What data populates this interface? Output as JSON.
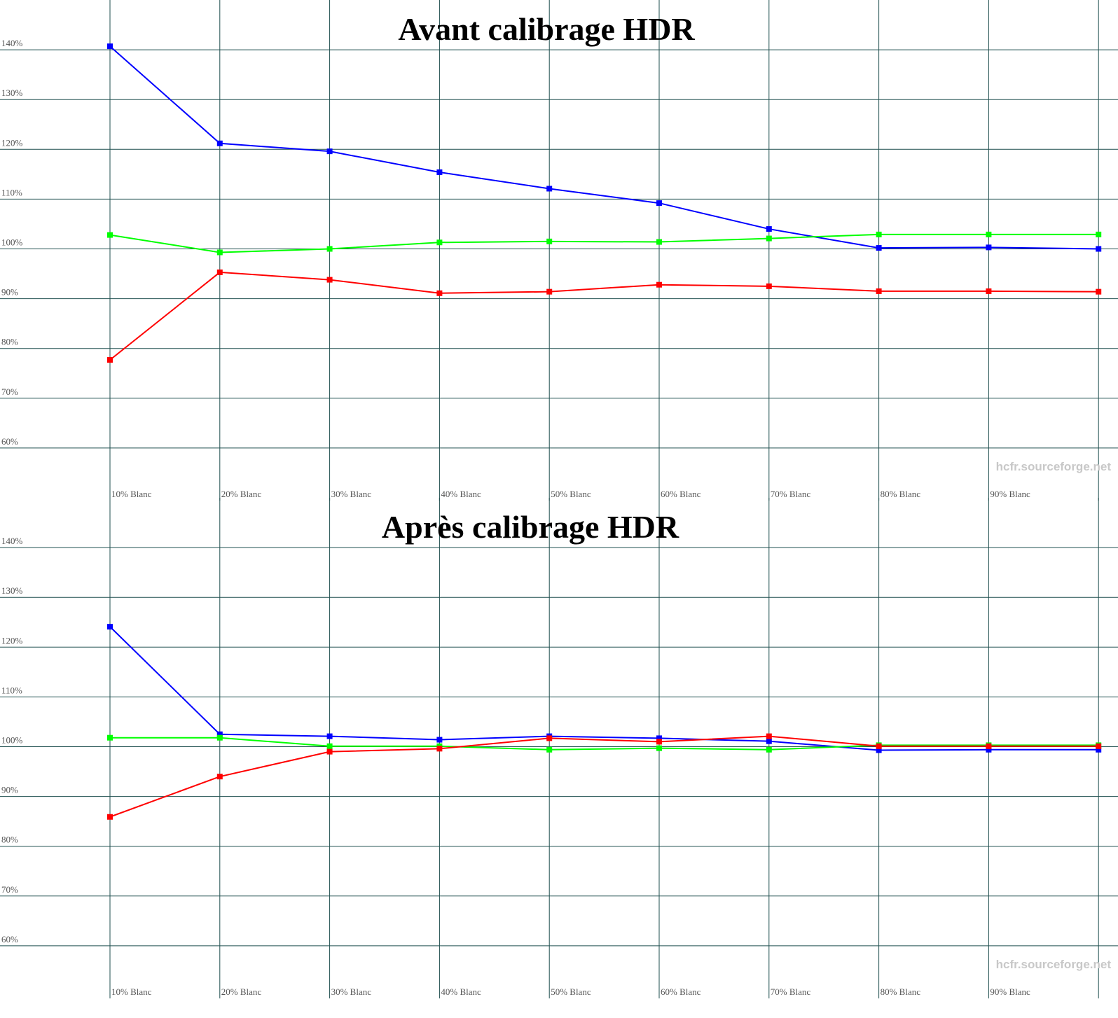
{
  "chart_data": [
    {
      "type": "line",
      "title": "Avant calibrage HDR",
      "categories": [
        "10% Blanc",
        "20% Blanc",
        "30% Blanc",
        "40% Blanc",
        "50% Blanc",
        "60% Blanc",
        "70% Blanc",
        "80% Blanc",
        "90% Blanc",
        null
      ],
      "series": [
        {
          "color": "#0000ff",
          "values": [
            140.7,
            121.2,
            119.6,
            115.4,
            112.1,
            109.2,
            104.0,
            100.2,
            100.3,
            100.0
          ]
        },
        {
          "color": "#00ff00",
          "values": [
            102.8,
            99.3,
            100.0,
            101.3,
            101.5,
            101.4,
            102.1,
            102.9,
            102.9,
            102.9
          ]
        },
        {
          "color": "#ff0000",
          "values": [
            77.7,
            95.3,
            93.8,
            91.1,
            91.4,
            92.8,
            92.5,
            91.5,
            91.5,
            91.4
          ]
        }
      ],
      "ylim": [
        50,
        150
      ],
      "yticks": [
        {
          "value": 60,
          "label": "60%"
        },
        {
          "value": 70,
          "label": "70%"
        },
        {
          "value": 80,
          "label": "80%"
        },
        {
          "value": 90,
          "label": "90%"
        },
        {
          "value": 100,
          "label": "100%"
        },
        {
          "value": 110,
          "label": "110%"
        },
        {
          "value": 120,
          "label": "120%"
        },
        {
          "value": 130,
          "label": "130%"
        },
        {
          "value": 140,
          "label": "140%"
        }
      ],
      "grid": true,
      "grid_color": "#1f4f4f",
      "reference_line": 100,
      "watermark": "hcfr.sourceforge.net"
    },
    {
      "type": "line",
      "title": "Après calibrage HDR",
      "categories": [
        "10% Blanc",
        "20% Blanc",
        "30% Blanc",
        "40% Blanc",
        "50% Blanc",
        "60% Blanc",
        "70% Blanc",
        "80% Blanc",
        "90% Blanc",
        null
      ],
      "series": [
        {
          "color": "#0000ff",
          "values": [
            124.1,
            102.5,
            102.1,
            101.4,
            102.1,
            101.7,
            101.1,
            99.3,
            99.4,
            99.4
          ]
        },
        {
          "color": "#00ff00",
          "values": [
            101.8,
            101.8,
            100.1,
            100.1,
            99.4,
            99.7,
            99.4,
            100.3,
            100.3,
            100.3
          ]
        },
        {
          "color": "#ff0000",
          "values": [
            85.9,
            94.0,
            99.0,
            99.6,
            101.7,
            101.0,
            102.1,
            100.1,
            100.1,
            100.1
          ]
        }
      ],
      "ylim": [
        50,
        150
      ],
      "yticks": [
        {
          "value": 60,
          "label": "60%"
        },
        {
          "value": 70,
          "label": "70%"
        },
        {
          "value": 80,
          "label": "80%"
        },
        {
          "value": 90,
          "label": "90%"
        },
        {
          "value": 100,
          "label": "100%"
        },
        {
          "value": 110,
          "label": "110%"
        },
        {
          "value": 120,
          "label": "120%"
        },
        {
          "value": 130,
          "label": "130%"
        },
        {
          "value": 140,
          "label": "140%"
        }
      ],
      "grid": true,
      "grid_color": "#1f4f4f",
      "reference_line": 100,
      "watermark": "hcfr.sourceforge.net"
    }
  ]
}
